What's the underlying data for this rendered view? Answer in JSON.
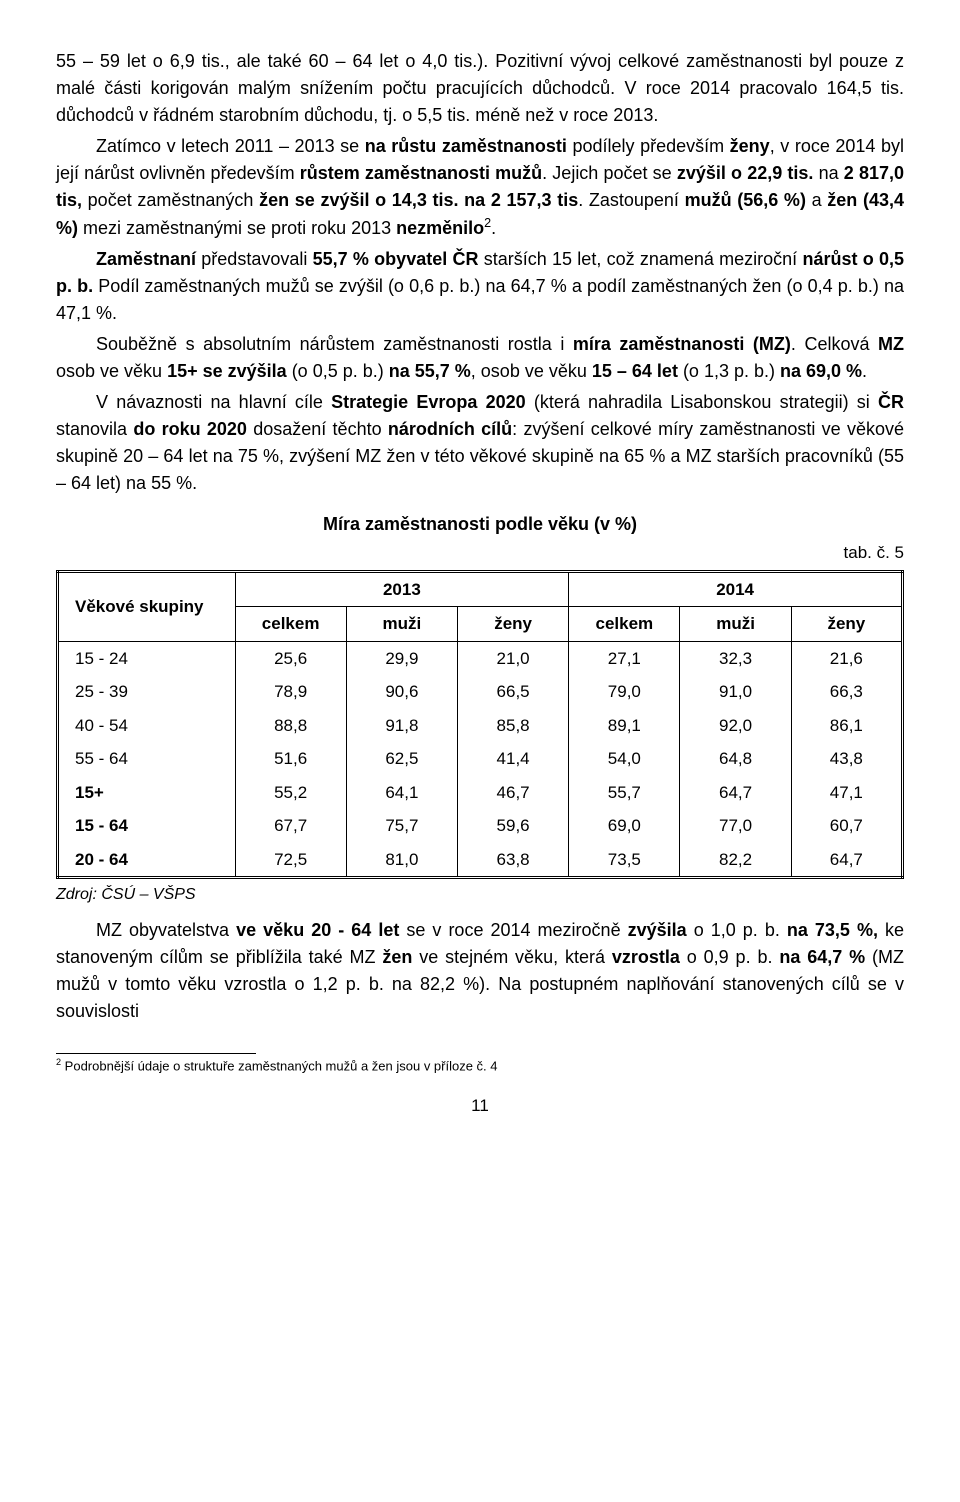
{
  "paragraphs": {
    "p1a": "55 – 59 let o  6,9 tis., ale také 60 – 64 let o 4,0 tis.). Pozitivní vývoj celkové zaměstnanosti byl pouze z malé části korigován malým snížením počtu pracujících důchodců. V roce 2014 pracovalo 164,5 tis. důchodců v řádném starobním důchodu, tj. o 5,5 tis. méně než v roce 2013.",
    "p1b_pre": "Zatímco v letech 2011 – 2013 se ",
    "p1b_b1": "na růstu zaměstnanosti",
    "p1b_mid1": " podílely především ",
    "p1b_b2": "ženy",
    "p1b_mid2": ", v roce 2014 byl její nárůst ovlivněn především",
    "p1b_b3": " růstem zaměstnanosti mužů",
    "p1b_mid3": ". Jejich počet se ",
    "p1b_b4": "zvýšil o 22,9 tis.",
    "p1b_mid4": " na ",
    "p1b_b5": "2 817,0 tis,",
    "p1b_mid5": " počet zaměstnaných ",
    "p1b_b6": "žen se zvýšil o 14,3 tis.  na  2 157,3  tis",
    "p1b_mid6": ".  Zastoupení  ",
    "p1b_b7": "mužů  (56,6 %)",
    "p1b_mid7": "  a  ",
    "p1b_b8": "žen  (43,4 %)",
    "p1b_mid8": "  mezi zaměstnanými se proti roku 2013 ",
    "p1b_b9": "nezměnilo",
    "p1b_sup": "2",
    "p1b_end": ".",
    "p2_b1": "Zaměstnaní",
    "p2_m1": " představovali ",
    "p2_b2": "55,7 % obyvatel ČR",
    "p2_m2": " starších 15 let, což znamená meziroční ",
    "p2_b3": "nárůst  o  0,5  p.  b.",
    "p2_m3": "  Podíl  zaměstnaných  mužů  se  zvýšil  (o  0,6 p.  b.)  na 64,7 % a podíl zaměstnaných žen (o 0,4 p. b.) na 47,1 %.",
    "p3_m1": "Souběžně s absolutním nárůstem zaměstnanosti rostla i ",
    "p3_b1": "míra zaměstnanosti (MZ)",
    "p3_m2": ". Celková ",
    "p3_b2": "MZ",
    "p3_m3": " osob ve věku ",
    "p3_b3": "15+ se zvýšila",
    "p3_m4": " (o 0,5 p. b.) ",
    "p3_b4": "na 55,7 %",
    "p3_m5": ", osob ve věku ",
    "p3_b5": "15 – 64 let",
    "p3_m6": " (o 1,3 p. b.) ",
    "p3_b6": "na 69,0 %",
    "p3_m7": ".",
    "p4_m1": "V  návaznosti  na  hlavní  cíle  ",
    "p4_b1": "Strategie  Evropa  2020",
    "p4_m2": "  (která  nahradila Lisabonskou strategii) si ",
    "p4_b2": "ČR",
    "p4_m3": " stanovila ",
    "p4_b3": "do roku 2020",
    "p4_m4": " dosažení těchto ",
    "p4_b4": "národních cílů",
    "p4_m5": ": zvýšení celkové míry zaměstnanosti ve věkové skupině 20 – 64 let na 75 %, zvýšení MZ žen v této věkové skupině na 65 % a MZ starších pracovníků   (55 – 64 let) na 55 %.",
    "p5_m1": "MZ obyvatelstva ",
    "p5_b1": "ve věku 20 - 64 let",
    "p5_m2": " se v roce 2014 meziročně ",
    "p5_b2": "zvýšila",
    "p5_m3": " o 1,0 p. b.  ",
    "p5_b3": "na 73,5 %,",
    "p5_m4": " ke stanoveným cílům se přiblížila také MZ ",
    "p5_b4": "žen",
    "p5_m5": " ve stejném věku, která ",
    "p5_b5": "vzrostla",
    "p5_m6": " o 0,9 p. b. ",
    "p5_b6": "na 64,7 %",
    "p5_m7": " (MZ mužů v tomto věku vzrostla o 1,2 p. b. na  82,2 %).  Na  postupném  naplňování  stanovených  cílů  se  v souvislosti"
  },
  "table": {
    "caption": "Míra zaměstnanosti podle věku (v %)",
    "tabnum": "tab. č. 5",
    "rowhead": "Věkové skupiny",
    "years": [
      "2013",
      "2014"
    ],
    "subcols": [
      "celkem",
      "muži",
      "ženy",
      "celkem",
      "muži",
      "ženy"
    ],
    "rows": [
      {
        "label": "15 - 24",
        "bold": false,
        "v": [
          "25,6",
          "29,9",
          "21,0",
          "27,1",
          "32,3",
          "21,6"
        ]
      },
      {
        "label": "25 - 39",
        "bold": false,
        "v": [
          "78,9",
          "90,6",
          "66,5",
          "79,0",
          "91,0",
          "66,3"
        ]
      },
      {
        "label": "40 - 54",
        "bold": false,
        "v": [
          "88,8",
          "91,8",
          "85,8",
          "89,1",
          "92,0",
          "86,1"
        ]
      },
      {
        "label": "55 - 64",
        "bold": false,
        "v": [
          "51,6",
          "62,5",
          "41,4",
          "54,0",
          "64,8",
          "43,8"
        ]
      },
      {
        "label": "15+",
        "bold": true,
        "v": [
          "55,2",
          "64,1",
          "46,7",
          "55,7",
          "64,7",
          "47,1"
        ]
      },
      {
        "label": "15 - 64",
        "bold": true,
        "v": [
          "67,7",
          "75,7",
          "59,6",
          "69,0",
          "77,0",
          "60,7"
        ]
      },
      {
        "label": "20 - 64",
        "bold": true,
        "v": [
          "72,5",
          "81,0",
          "63,8",
          "73,5",
          "82,2",
          "64,7"
        ]
      }
    ],
    "source": "Zdroj: ČSÚ – VŠPS"
  },
  "footnote": {
    "num": "2",
    "text": " Podrobnější údaje o struktuře zaměstnaných mužů a žen jsou v příloze č. 4"
  },
  "pagenum": "11"
}
